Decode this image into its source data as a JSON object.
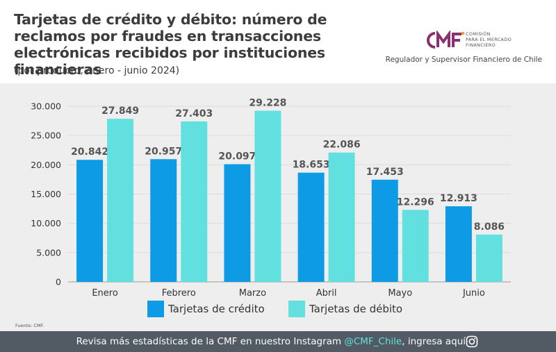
{
  "header": {
    "title": "Tarjetas de crédito y débito: número de reclamos por fraudes en transacciones electrónicas recibidos por instituciones financieras",
    "subtitle": "(por producto, enero - junio 2024)",
    "logo_text_lines": [
      "COMISIÓN",
      "PARA EL MERCADO",
      "FINANCIERO"
    ],
    "regulator_text": "Regulador y Supervisor Financiero de Chile"
  },
  "chart_data": {
    "type": "bar",
    "categories": [
      "Enero",
      "Febrero",
      "Marzo",
      "Abril",
      "Mayo",
      "Junio"
    ],
    "series": [
      {
        "name": "Tarjetas de crédito",
        "color": "#0d9be6",
        "values": [
          20842,
          20957,
          20097,
          18653,
          17453,
          12913
        ],
        "labels": [
          "20.842",
          "20.957",
          "20.097",
          "18.653",
          "17.453",
          "12.913"
        ]
      },
      {
        "name": "Tarjetas de débito",
        "color": "#62e0e0",
        "values": [
          27849,
          27403,
          29228,
          22086,
          12296,
          8086
        ],
        "labels": [
          "27.849",
          "27.403",
          "29.228",
          "22.086",
          "12.296",
          "8.086"
        ]
      }
    ],
    "ylim": [
      0,
      30000
    ],
    "yticks": [
      0,
      5000,
      10000,
      15000,
      20000,
      25000,
      30000
    ],
    "ytick_labels": [
      "0",
      "5.000",
      "10.000",
      "15.000",
      "20.000",
      "25.000",
      "30.000"
    ],
    "grid": true,
    "legend_position": "bottom"
  },
  "source_text": "Fuente: CMF.",
  "footer": {
    "text_before": "Revisa más estadísticas de la CMF en nuestro Instagram ",
    "handle": "@CMF_Chile",
    "text_after": ", ingresa aquí"
  },
  "colors": {
    "footer_bg": "#525a63",
    "handle": "#5fe0e0",
    "logo_purple": "#8b2f6e",
    "chart_bg": "#eeeeee"
  },
  "icons": [
    "cmf-logo",
    "instagram-icon"
  ]
}
